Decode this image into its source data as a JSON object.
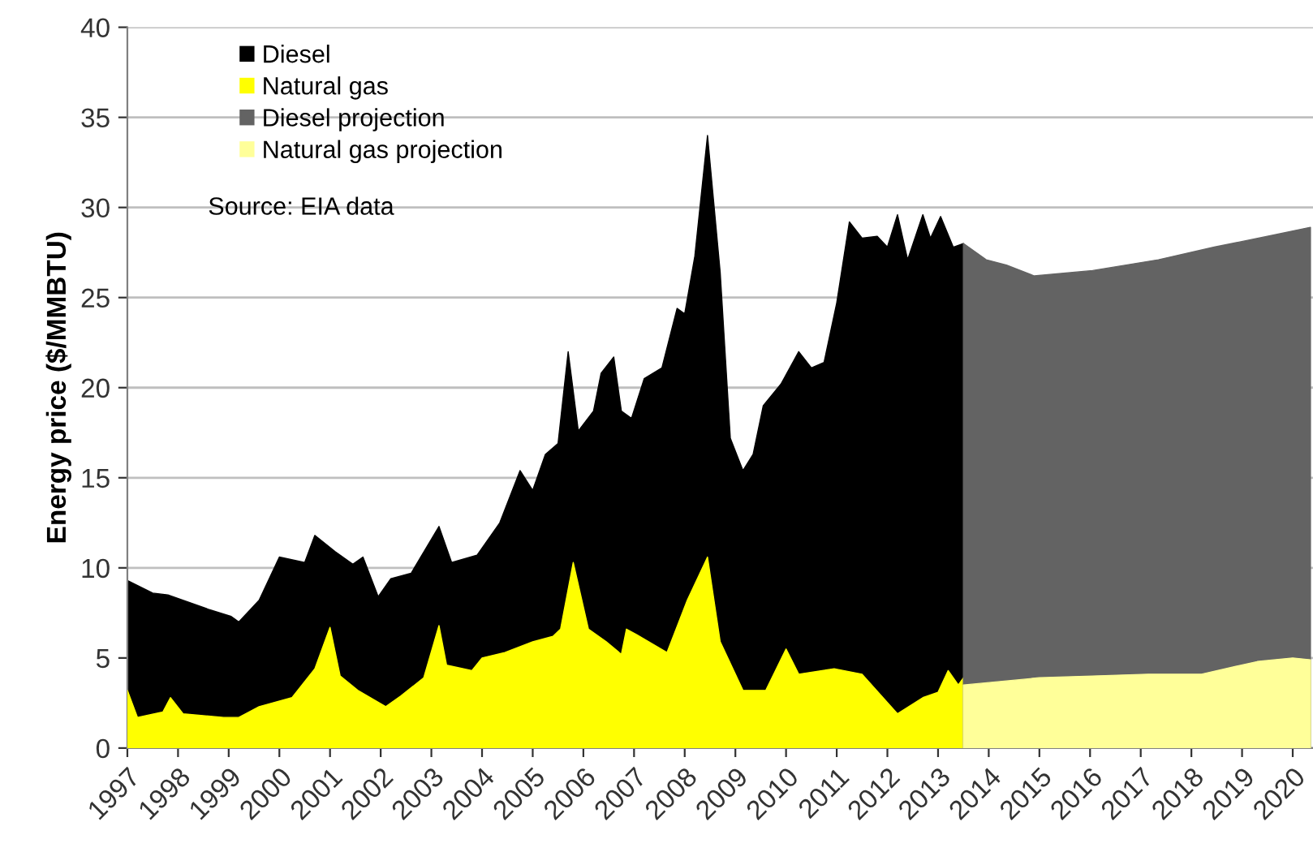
{
  "chart_data": {
    "type": "area",
    "ylabel": "Energy price ($/MMBTU)",
    "ylim": [
      0,
      40
    ],
    "yticks": [
      0,
      5,
      10,
      15,
      20,
      25,
      30,
      35,
      40
    ],
    "xlim": [
      1997,
      2020.4
    ],
    "xticks": [
      {
        "value": 1997,
        "label": "1997"
      },
      {
        "value": 1998,
        "label": "1998"
      },
      {
        "value": 1999,
        "label": "1999"
      },
      {
        "value": 2000,
        "label": "2000"
      },
      {
        "value": 2001,
        "label": "2001"
      },
      {
        "value": 2002,
        "label": "2002"
      },
      {
        "value": 2003,
        "label": "2003"
      },
      {
        "value": 2004,
        "label": "2004"
      },
      {
        "value": 2005,
        "label": "2005"
      },
      {
        "value": 2006,
        "label": "2006"
      },
      {
        "value": 2007,
        "label": "2007"
      },
      {
        "value": 2008,
        "label": "2008"
      },
      {
        "value": 2009,
        "label": "2009"
      },
      {
        "value": 2010,
        "label": "2010"
      },
      {
        "value": 2011,
        "label": "2011"
      },
      {
        "value": 2012,
        "label": "2012"
      },
      {
        "value": 2013,
        "label": "2013"
      },
      {
        "value": 2014,
        "label": "2014"
      },
      {
        "value": 2015,
        "label": "2015"
      },
      {
        "value": 2016,
        "label": "2016"
      },
      {
        "value": 2017,
        "label": "2017"
      },
      {
        "value": 2018,
        "label": "2018"
      },
      {
        "value": 2019,
        "label": "2019"
      },
      {
        "value": 2020,
        "label": "2020"
      }
    ],
    "grid": "y",
    "legend": "top left",
    "annotations": [
      "Source: EIA data"
    ],
    "series": [
      {
        "name": "Diesel",
        "color": "#000000",
        "x": [
          1997.0,
          1997.5,
          1997.8,
          1998.6,
          1999.05,
          1999.2,
          1999.6,
          2000.0,
          2000.5,
          2000.7,
          2001.1,
          2001.45,
          2001.65,
          2001.95,
          2002.2,
          2002.6,
          2003.15,
          2003.4,
          2003.9,
          2004.35,
          2004.75,
          2005.0,
          2005.25,
          2005.5,
          2005.7,
          2005.9,
          2006.2,
          2006.35,
          2006.6,
          2006.75,
          2006.95,
          2007.2,
          2007.55,
          2007.85,
          2008.0,
          2008.2,
          2008.45,
          2008.7,
          2008.9,
          2009.15,
          2009.35,
          2009.55,
          2009.9,
          2010.25,
          2010.5,
          2010.75,
          2011.0,
          2011.25,
          2011.5,
          2011.8,
          2012.0,
          2012.2,
          2012.4,
          2012.7,
          2012.85,
          2013.05,
          2013.3,
          2013.5
        ],
        "values": [
          9.3,
          8.6,
          8.5,
          7.7,
          7.3,
          7.0,
          8.2,
          10.6,
          10.3,
          11.8,
          10.9,
          10.2,
          10.6,
          8.4,
          9.4,
          9.7,
          12.3,
          10.3,
          10.7,
          12.5,
          15.4,
          14.3,
          16.3,
          16.9,
          22.0,
          17.6,
          18.7,
          20.8,
          21.7,
          18.7,
          18.3,
          20.5,
          21.1,
          24.4,
          24.1,
          27.3,
          34.0,
          26.4,
          17.2,
          15.4,
          16.3,
          19.0,
          20.2,
          22.0,
          21.1,
          21.4,
          24.7,
          29.2,
          28.3,
          28.4,
          27.8,
          29.6,
          27.1,
          29.6,
          28.3,
          29.5,
          27.8,
          28.0
        ]
      },
      {
        "name": "Natural gas",
        "color": "#ffff00",
        "x": [
          1997.0,
          1997.2,
          1997.7,
          1997.85,
          1998.1,
          1998.9,
          1999.2,
          1999.6,
          2000.25,
          2000.7,
          2001.0,
          2001.2,
          2001.55,
          2002.1,
          2002.4,
          2002.85,
          2003.15,
          2003.3,
          2003.8,
          2004.0,
          2004.45,
          2005.0,
          2005.4,
          2005.55,
          2005.8,
          2006.1,
          2006.45,
          2006.75,
          2006.85,
          2007.05,
          2007.65,
          2008.05,
          2008.45,
          2008.7,
          2009.15,
          2009.6,
          2010.0,
          2010.25,
          2010.95,
          2011.5,
          2012.2,
          2012.7,
          2013.0,
          2013.2,
          2013.4,
          2013.5
        ],
        "values": [
          3.2,
          1.7,
          2.0,
          2.8,
          1.9,
          1.7,
          1.7,
          2.3,
          2.8,
          4.4,
          6.7,
          4.0,
          3.2,
          2.3,
          2.9,
          3.9,
          6.8,
          4.6,
          4.3,
          5.0,
          5.3,
          5.9,
          6.2,
          6.6,
          10.3,
          6.6,
          5.9,
          5.2,
          6.6,
          6.3,
          5.3,
          8.2,
          10.6,
          5.9,
          3.2,
          3.2,
          5.5,
          4.1,
          4.4,
          4.1,
          1.9,
          2.8,
          3.1,
          4.3,
          3.5,
          3.9
        ]
      },
      {
        "name": "Diesel projection",
        "color": "#636363",
        "x": [
          2013.5,
          2013.95,
          2014.35,
          2014.9,
          2016.05,
          2017.35,
          2018.45,
          2019.5,
          2020.35
        ],
        "values": [
          28.0,
          27.1,
          26.8,
          26.2,
          26.5,
          27.1,
          27.8,
          28.4,
          28.9
        ]
      },
      {
        "name": "Natural gas projection",
        "color": "#ffff99",
        "x": [
          2013.5,
          2015.0,
          2016.05,
          2017.15,
          2018.2,
          2019.3,
          2020.0,
          2020.35
        ],
        "values": [
          3.5,
          3.9,
          4.0,
          4.1,
          4.1,
          4.8,
          5.0,
          4.9
        ]
      }
    ]
  }
}
